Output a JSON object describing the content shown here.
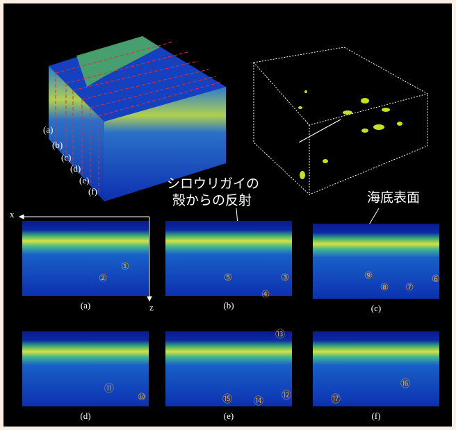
{
  "cube_labels": [
    "(a)",
    "(b)",
    "(c)",
    "(d)",
    "(e)",
    "(f)"
  ],
  "axes": {
    "x": "x",
    "z": "z"
  },
  "annotations": {
    "shell_reflection": [
      "シロウリガイの",
      "殻からの反射"
    ],
    "seafloor_surface": "海底表面"
  },
  "panels": [
    {
      "label": "(a)",
      "markers": [
        "①",
        "②"
      ]
    },
    {
      "label": "(b)",
      "markers": [
        "⑤",
        "③",
        "④"
      ]
    },
    {
      "label": "(c)",
      "markers": [
        "⑨",
        "⑧",
        "⑦",
        "⑥"
      ]
    },
    {
      "label": "(d)",
      "markers": [
        "⑪",
        "⑩"
      ]
    },
    {
      "label": "(e)",
      "markers": [
        "⑬",
        "⑮",
        "⑭",
        "⑫"
      ]
    },
    {
      "label": "(f)",
      "markers": [
        "⑯",
        "⑰"
      ]
    }
  ]
}
